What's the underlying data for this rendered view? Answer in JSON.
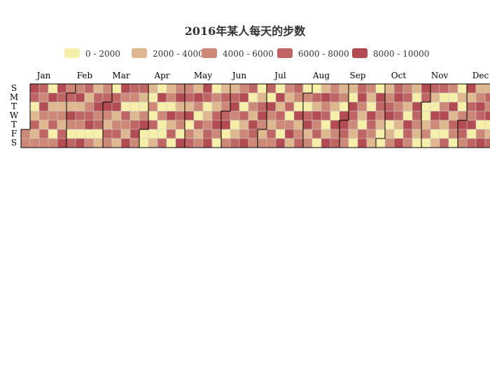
{
  "chart_data": {
    "type": "heatmap",
    "title": "2016年某人每天的步数",
    "year": 2016,
    "week_start": "Sunday",
    "day_labels": [
      "S",
      "M",
      "T",
      "W",
      "T",
      "F",
      "S"
    ],
    "month_labels": [
      "Jan",
      "Feb",
      "Mar",
      "Apr",
      "May",
      "Jun",
      "Jul",
      "Aug",
      "Sep",
      "Oct",
      "Nov",
      "Dec"
    ],
    "legend": {
      "placement": "top",
      "items": [
        {
          "label": "0 - 2000",
          "color": "#f5efaa"
        },
        {
          "label": "2000 - 4000",
          "color": "#e0b890"
        },
        {
          "label": "4000 - 6000",
          "color": "#cd8878"
        },
        {
          "label": "6000 - 8000",
          "color": "#bf6664"
        },
        {
          "label": "8000 - 10000",
          "color": "#b24b52"
        }
      ]
    },
    "bins": [
      [
        0,
        2000
      ],
      [
        2000,
        4000
      ],
      [
        4000,
        6000
      ],
      [
        6000,
        8000
      ],
      [
        8000,
        10000
      ]
    ],
    "daily_bins": [
      [
        2,
        2,
        4,
        3,
        0,
        1,
        3,
        1,
        2,
        3,
        2,
        4,
        2,
        1,
        3,
        2,
        0,
        4,
        1,
        2,
        3,
        0,
        2,
        4,
        3,
        1,
        2,
        1,
        3,
        4,
        2
      ],
      [
        3,
        1,
        4,
        2,
        0,
        3,
        2,
        4,
        1,
        3,
        2,
        0,
        4,
        3,
        1,
        2,
        3,
        4,
        0,
        2,
        1,
        3,
        4,
        2,
        3,
        0,
        1,
        2,
        3
      ],
      [
        4,
        2,
        1,
        3,
        2,
        0,
        3,
        4,
        1,
        2,
        3,
        1,
        4,
        2,
        0,
        3,
        2,
        1,
        4,
        3,
        2,
        0,
        1,
        3,
        4,
        2,
        3,
        1,
        0,
        2,
        4
      ],
      [
        0,
        0,
        1,
        0,
        2,
        0,
        3,
        0,
        1,
        0,
        4,
        0,
        2,
        0,
        0,
        3,
        1,
        2,
        0,
        4,
        1,
        3,
        0,
        2,
        4,
        1,
        3,
        2,
        0,
        4
      ],
      [
        2,
        3,
        1,
        4,
        0,
        2,
        3,
        1,
        4,
        2,
        0,
        3,
        1,
        2,
        4,
        3,
        0,
        1,
        2,
        3,
        4,
        0,
        2,
        1,
        3,
        4,
        2,
        0,
        1,
        3,
        2
      ],
      [
        3,
        4,
        0,
        2,
        1,
        3,
        4,
        2,
        0,
        1,
        3,
        2,
        4,
        0,
        3,
        1,
        2,
        4,
        3,
        0,
        2,
        1,
        4,
        3,
        2,
        0,
        1,
        3,
        4,
        2
      ],
      [
        1,
        2,
        3,
        0,
        4,
        2,
        1,
        3,
        2,
        0,
        4,
        1,
        3,
        2,
        0,
        4,
        2,
        1,
        3,
        0,
        2,
        4,
        1,
        3,
        2,
        0,
        4,
        1,
        2,
        3,
        0
      ],
      [
        2,
        0,
        3,
        4,
        1,
        2,
        0,
        3,
        1,
        4,
        2,
        3,
        0,
        1,
        4,
        2,
        3,
        0,
        1,
        4,
        2,
        3,
        1,
        0,
        4,
        2,
        3,
        1,
        2,
        0,
        4
      ],
      [
        4,
        3,
        2,
        1,
        0,
        4,
        3,
        2,
        1,
        0,
        3,
        4,
        2,
        1,
        0,
        3,
        4,
        2,
        1,
        0,
        4,
        3,
        2,
        1,
        0,
        4,
        3,
        2,
        1,
        0
      ],
      [
        0,
        1,
        2,
        3,
        4,
        0,
        1,
        2,
        3,
        4,
        2,
        3,
        1,
        0,
        4,
        2,
        3,
        1,
        0,
        4,
        3,
        2,
        1,
        0,
        4,
        3,
        2,
        1,
        0,
        4,
        3
      ],
      [
        0,
        0,
        1,
        2,
        0,
        3,
        1,
        0,
        4,
        2,
        0,
        1,
        3,
        0,
        2,
        4,
        1,
        0,
        3,
        2,
        0,
        4,
        1,
        3,
        2,
        0,
        0,
        1,
        0,
        2
      ],
      [
        4,
        3,
        2,
        4,
        1,
        3,
        2,
        4,
        0,
        3,
        1,
        2,
        4,
        3,
        0,
        2,
        4,
        1,
        3,
        2,
        4,
        0,
        1,
        3,
        2,
        4,
        3,
        1,
        0,
        2,
        4
      ]
    ]
  }
}
